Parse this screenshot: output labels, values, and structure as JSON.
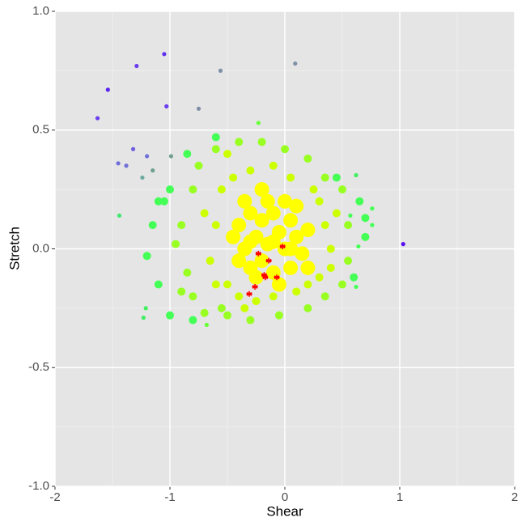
{
  "chart_data": {
    "type": "scatter",
    "x_label": "Shear",
    "y_label": "Stretch",
    "xlim": [
      -2,
      2
    ],
    "ylim": [
      -1,
      1
    ],
    "xticks": [
      -2,
      -1,
      0,
      1,
      2
    ],
    "yticks": [
      {
        "value": -1,
        "label": "-1.0"
      },
      {
        "value": -0.5,
        "label": "-0.5"
      },
      {
        "value": 0,
        "label": "0.0"
      },
      {
        "value": 0.5,
        "label": "0.5"
      },
      {
        "value": 1,
        "label": "1.0"
      }
    ],
    "x_minor": [
      -1.5,
      -0.5,
      0.5,
      1.5
    ],
    "y_minor": [
      -0.75,
      -0.25,
      0.25,
      0.75
    ],
    "grid": true,
    "panel_color": "#e5e5e5",
    "series": [
      {
        "color": "#99ff22",
        "marker": "circle",
        "x": [
          -0.9,
          -0.85,
          -0.8,
          -0.8,
          -0.75,
          -0.7,
          -0.6,
          -0.55,
          -0.4,
          -0.2,
          0,
          0.2,
          0.35,
          0.5,
          0.55,
          0.55,
          0.5,
          0.35,
          0.2,
          -0.05,
          -0.3,
          -0.5,
          -0.95,
          -0.9
        ],
        "y": [
          0.1,
          -0.1,
          0.25,
          -0.2,
          0.35,
          -0.27,
          0.42,
          -0.25,
          0.45,
          0.45,
          0.42,
          0.38,
          0.3,
          0.25,
          0.1,
          -0.05,
          -0.15,
          -0.2,
          -0.25,
          -0.28,
          -0.3,
          -0.28,
          0.02,
          -0.18
        ]
      },
      {
        "color": "#44ff55",
        "marker": "circle",
        "x": [
          -1.1,
          -1.15,
          -1.2,
          -1.1,
          -1.0,
          -0.85,
          -0.6,
          0.45,
          0.65,
          0.7,
          0.6,
          -1.0,
          -0.8,
          0.7,
          -1.05
        ],
        "y": [
          0.2,
          0.1,
          -0.03,
          -0.15,
          0.25,
          0.4,
          0.47,
          0.3,
          0.2,
          0.05,
          -0.12,
          -0.28,
          -0.3,
          0.13,
          0.2
        ]
      },
      {
        "color": "#ccff00",
        "marker": "circle",
        "x": [
          -0.6,
          -0.65,
          -0.55,
          -0.5,
          -0.45,
          -0.4,
          -0.3,
          -0.25,
          -0.1,
          -0.1,
          0.05,
          0.1,
          0.25,
          0.3,
          0.35,
          0.4,
          0.3,
          -0.6,
          -0.7,
          0.45,
          -0.5,
          0.2,
          -0.35,
          0.4
        ],
        "y": [
          0.1,
          -0.05,
          0.25,
          -0.15,
          0.3,
          -0.2,
          0.33,
          -0.22,
          0.35,
          -0.2,
          0.3,
          -0.18,
          0.25,
          -0.12,
          0.1,
          0,
          0.2,
          -0.15,
          0.15,
          0.15,
          0.4,
          -0.15,
          -0.25,
          -0.08
        ]
      },
      {
        "color": "#ffff00",
        "marker": "circle",
        "x": [
          -0.4,
          -0.35,
          -0.3,
          -0.3,
          -0.25,
          -0.2,
          -0.2,
          -0.15,
          -0.1,
          -0.1,
          -0.05,
          0,
          0.05,
          0.05,
          0.1,
          0.15,
          -0.4,
          -0.35,
          -0.25,
          -0.15,
          0,
          0.1,
          0.2,
          -0.05,
          -0.45,
          -0.2,
          0.2,
          -0.3,
          -0.1,
          0.05
        ],
        "y": [
          0.1,
          0,
          0.15,
          -0.08,
          0.05,
          0.12,
          -0.05,
          0.02,
          0.15,
          -0.1,
          0.07,
          0,
          0.12,
          -0.08,
          0.05,
          -0.02,
          -0.05,
          0.2,
          -0.12,
          0.2,
          0.2,
          0.18,
          0.08,
          -0.15,
          0.05,
          0.25,
          -0.08,
          0.03,
          0.03,
          0
        ]
      },
      {
        "marker": "circle",
        "colors": [
          "#6a3df0",
          "#5a25f0",
          "#6a3df0",
          "#6030f0",
          "#6a3df0",
          "#7f8fa8",
          "#7f8fa8",
          "#7f8fa8",
          "#7060e0",
          "#7070d8",
          "#7070d8",
          "#7070d8",
          "#70a090",
          "#70a090",
          "#70a8a0",
          "#5a10f0",
          "#40e870",
          "#40f060",
          "#40f060",
          "#40f060",
          "#44ff55",
          "#44ff55",
          "#44ff55",
          "#44ff55",
          "#44ff55",
          "#66ff33",
          "#66ff33"
        ],
        "x": [
          -1.63,
          -1.54,
          -1.29,
          -1.05,
          -1.03,
          -0.56,
          0.09,
          -0.75,
          -1.32,
          -1.45,
          -1.38,
          -1.2,
          -1.15,
          -0.99,
          -1.24,
          1.03,
          -1.44,
          -1.21,
          -1.23,
          0.62,
          0.76,
          0.76,
          0.62,
          0.64,
          0.57,
          -0.23,
          -0.68
        ],
        "y": [
          0.55,
          0.67,
          0.77,
          0.82,
          0.6,
          0.75,
          0.78,
          0.59,
          0.42,
          0.36,
          0.35,
          0.39,
          0.33,
          0.39,
          0.3,
          0.02,
          0.14,
          -0.25,
          -0.29,
          0.31,
          0.17,
          0.1,
          -0.16,
          0.01,
          0.14,
          0.53,
          -0.32
        ]
      },
      {
        "color": "#ff0000",
        "marker": "star",
        "x": [
          -0.23,
          -0.02,
          -0.14,
          -0.18,
          -0.17,
          -0.07,
          -0.26,
          -0.31
        ],
        "y": [
          -0.02,
          0.01,
          -0.05,
          -0.11,
          -0.12,
          -0.12,
          -0.16,
          -0.19
        ]
      }
    ]
  }
}
